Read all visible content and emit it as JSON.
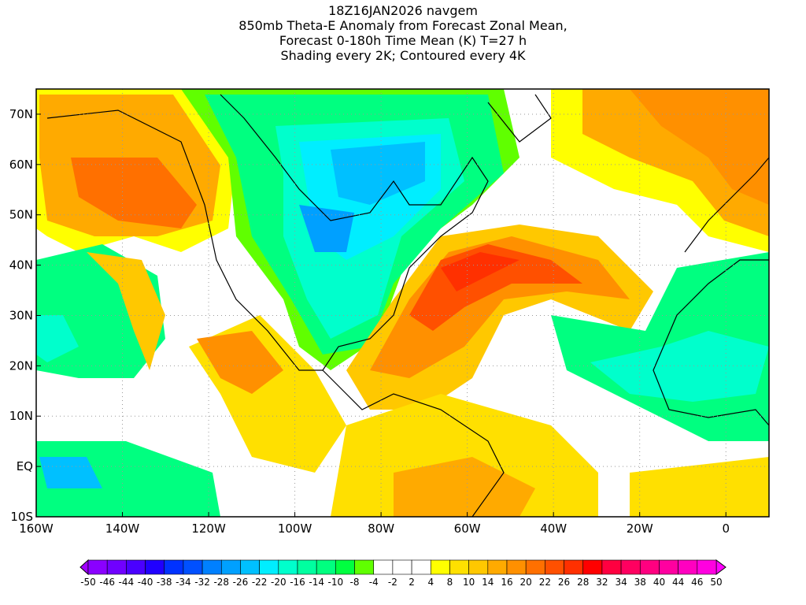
{
  "title": {
    "line1": "18Z16JAN2026 navgem",
    "line2": "850mb Theta-E Anomaly from Forecast Zonal Mean,",
    "line3": "Forecast 0-180h Time Mean (K) T=27 h",
    "line4": "Shading every 2K; Contoured every 4K"
  },
  "map": {
    "lon_range": [
      -160,
      10
    ],
    "lat_range": [
      -10,
      75
    ],
    "x_ticks": [
      "160W",
      "140W",
      "120W",
      "100W",
      "80W",
      "60W",
      "40W",
      "20W",
      "0"
    ],
    "x_tick_values": [
      -160,
      -140,
      -120,
      -100,
      -80,
      -60,
      -40,
      -20,
      0
    ],
    "y_ticks": [
      "10S",
      "EQ",
      "10N",
      "20N",
      "30N",
      "40N",
      "50N",
      "60N",
      "70N"
    ],
    "y_tick_values": [
      -10,
      0,
      10,
      20,
      30,
      40,
      50,
      60,
      70
    ]
  },
  "colorbar": {
    "labels": [
      "-50",
      "-46",
      "-44",
      "-40",
      "-38",
      "-34",
      "-32",
      "-28",
      "-26",
      "-22",
      "-20",
      "-16",
      "-14",
      "-10",
      "-8",
      "-4",
      "-2",
      "2",
      "4",
      "8",
      "10",
      "14",
      "16",
      "20",
      "22",
      "26",
      "28",
      "32",
      "34",
      "38",
      "40",
      "44",
      "46",
      "50"
    ],
    "colors": [
      "#8a00ff",
      "#7000ff",
      "#4a00ff",
      "#2000ff",
      "#0032ff",
      "#0050ff",
      "#0080ff",
      "#00a0ff",
      "#00c0ff",
      "#00eeff",
      "#00ffcc",
      "#00ffa0",
      "#00ff80",
      "#00ff40",
      "#60ff00",
      "#ffffff",
      "#ffffff",
      "#ffffff",
      "#ffff00",
      "#ffe000",
      "#ffc800",
      "#ffaa00",
      "#ff9000",
      "#ff7000",
      "#ff5000",
      "#ff3000",
      "#ff0000",
      "#ff0040",
      "#ff0060",
      "#ff0080",
      "#ff00a0",
      "#ff00c0",
      "#ff00e0"
    ],
    "low_end_color": "#a000ff",
    "high_end_color": "#ff00ff"
  }
}
